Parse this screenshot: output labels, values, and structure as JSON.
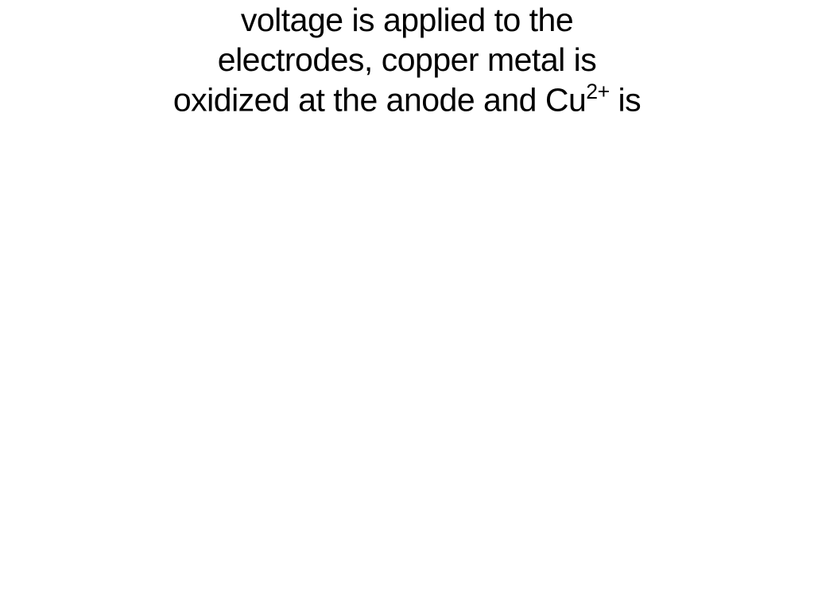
{
  "slide": {
    "line1": "voltage is applied to the",
    "line2": "electrodes, copper metal is",
    "line3_part1": "oxidized at the anode and Cu",
    "line3_super": "2+",
    "line3_part2": " is",
    "text_color": "#000000",
    "background_color": "#ffffff",
    "font_size": 41,
    "font_family": "Arial, Helvetica, sans-serif"
  }
}
